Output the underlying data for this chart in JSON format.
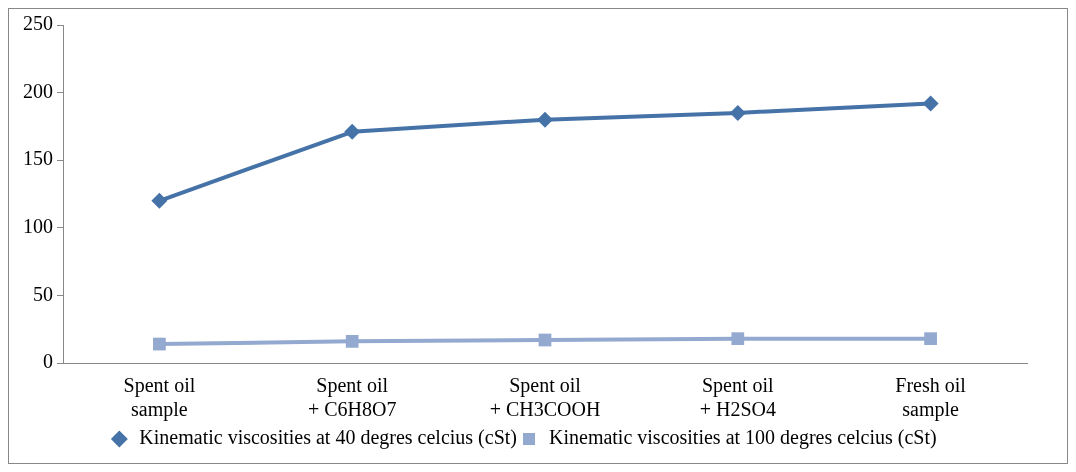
{
  "chart_data": {
    "type": "line",
    "categories": [
      "Spent oil sample",
      "Spent oil + C6H8O7",
      "Spent oil + CH3COOH",
      "Spent oil + H2SO4",
      "Fresh oil sample"
    ],
    "series": [
      {
        "name": "Kinematic viscosities at 40 degres celcius (cSt)",
        "color": "#4572a7",
        "values": [
          120,
          171,
          180,
          185,
          192
        ],
        "marker": "diamond"
      },
      {
        "name": "Kinematic viscosities at 100 degres celcius (cSt)",
        "color": "#93a9cf",
        "values": [
          14,
          16,
          17,
          18,
          18
        ],
        "marker": "square"
      }
    ],
    "ylim": [
      0,
      250
    ],
    "yticks": [
      0,
      50,
      100,
      150,
      200,
      250
    ],
    "grid": false,
    "legend": "bottom"
  }
}
